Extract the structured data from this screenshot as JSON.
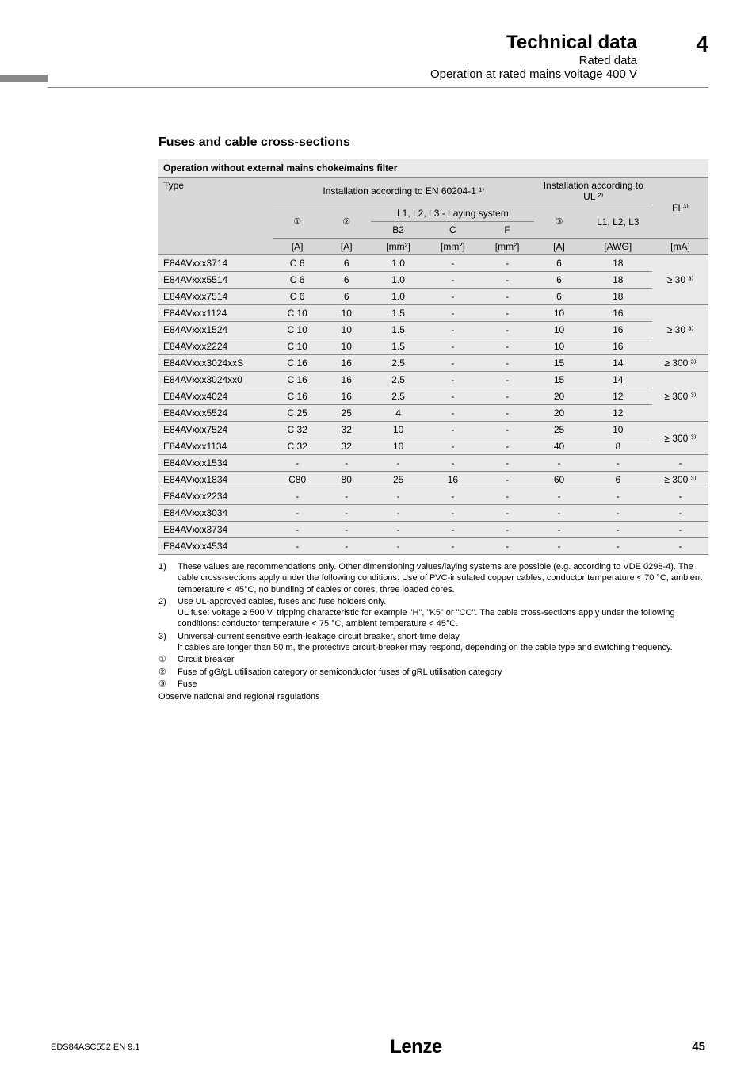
{
  "header": {
    "chapter_num": "4",
    "title": "Technical data",
    "sub1": "Rated data",
    "sub2": "Operation at rated mains voltage 400 V"
  },
  "section_title": "Fuses and cable cross-sections",
  "table": {
    "caption": "Operation without external mains choke/mains filter",
    "col_type": "Type",
    "group_en": "Installation according to EN 60204-1 ¹⁾",
    "group_ul": "Installation according to UL ²⁾",
    "group_fi": "FI ³⁾",
    "sub_laying": "L1, L2, L3 - Laying system",
    "sub_l123": "L1, L2, L3",
    "h_b2": "B2",
    "h_c": "C",
    "h_f": "F",
    "u_a1": "[A]",
    "u_a2": "[A]",
    "u_mm1": "[mm²]",
    "u_mm2": "[mm²]",
    "u_mm3": "[mm²]",
    "u_a3": "[A]",
    "u_awg": "[AWG]",
    "u_ma": "[mA]",
    "icon1": "①",
    "icon2": "②",
    "icon3": "③",
    "rows": [
      {
        "type": "E84AVxxx3714",
        "c1": "C 6",
        "c2": "6",
        "c3": "1.0",
        "c4": "-",
        "c5": "-",
        "c6": "6",
        "c7": "18"
      },
      {
        "type": "E84AVxxx5514",
        "c1": "C 6",
        "c2": "6",
        "c3": "1.0",
        "c4": "-",
        "c5": "-",
        "c6": "6",
        "c7": "18"
      },
      {
        "type": "E84AVxxx7514",
        "c1": "C 6",
        "c2": "6",
        "c3": "1.0",
        "c4": "-",
        "c5": "-",
        "c6": "6",
        "c7": "18"
      },
      {
        "type": "E84AVxxx1124",
        "c1": "C 10",
        "c2": "10",
        "c3": "1.5",
        "c4": "-",
        "c5": "-",
        "c6": "10",
        "c7": "16"
      },
      {
        "type": "E84AVxxx1524",
        "c1": "C 10",
        "c2": "10",
        "c3": "1.5",
        "c4": "-",
        "c5": "-",
        "c6": "10",
        "c7": "16"
      },
      {
        "type": "E84AVxxx2224",
        "c1": "C 10",
        "c2": "10",
        "c3": "1.5",
        "c4": "-",
        "c5": "-",
        "c6": "10",
        "c7": "16"
      },
      {
        "type": "E84AVxxx3024xxS",
        "c1": "C 16",
        "c2": "16",
        "c3": "2.5",
        "c4": "-",
        "c5": "-",
        "c6": "15",
        "c7": "14"
      },
      {
        "type": "E84AVxxx3024xx0",
        "c1": "C 16",
        "c2": "16",
        "c3": "2.5",
        "c4": "-",
        "c5": "-",
        "c6": "15",
        "c7": "14"
      },
      {
        "type": "E84AVxxx4024",
        "c1": "C 16",
        "c2": "16",
        "c3": "2.5",
        "c4": "-",
        "c5": "-",
        "c6": "20",
        "c7": "12"
      },
      {
        "type": "E84AVxxx5524",
        "c1": "C 25",
        "c2": "25",
        "c3": "4",
        "c4": "-",
        "c5": "-",
        "c6": "20",
        "c7": "12"
      },
      {
        "type": "E84AVxxx7524",
        "c1": "C 32",
        "c2": "32",
        "c3": "10",
        "c4": "-",
        "c5": "-",
        "c6": "25",
        "c7": "10"
      },
      {
        "type": "E84AVxxx1134",
        "c1": "C 32",
        "c2": "32",
        "c3": "10",
        "c4": "-",
        "c5": "-",
        "c6": "40",
        "c7": "8"
      },
      {
        "type": "E84AVxxx1534",
        "c1": "-",
        "c2": "-",
        "c3": "-",
        "c4": "-",
        "c5": "-",
        "c6": "-",
        "c7": "-",
        "fi": "-"
      },
      {
        "type": "E84AVxxx1834",
        "c1": "C80",
        "c2": "80",
        "c3": "25",
        "c4": "16",
        "c5": "-",
        "c6": "60",
        "c7": "6"
      },
      {
        "type": "E84AVxxx2234",
        "c1": "-",
        "c2": "-",
        "c3": "-",
        "c4": "-",
        "c5": "-",
        "c6": "-",
        "c7": "-",
        "fi": "-"
      },
      {
        "type": "E84AVxxx3034",
        "c1": "-",
        "c2": "-",
        "c3": "-",
        "c4": "-",
        "c5": "-",
        "c6": "-",
        "c7": "-",
        "fi": "-"
      },
      {
        "type": "E84AVxxx3734",
        "c1": "-",
        "c2": "-",
        "c3": "-",
        "c4": "-",
        "c5": "-",
        "c6": "-",
        "c7": "-",
        "fi": "-"
      },
      {
        "type": "E84AVxxx4534",
        "c1": "-",
        "c2": "-",
        "c3": "-",
        "c4": "-",
        "c5": "-",
        "c6": "-",
        "c7": "-",
        "fi": "-"
      }
    ],
    "fi_groups": [
      {
        "span": 3,
        "text": "≥ 30 ³⁾"
      },
      {
        "span": 3,
        "text": "≥ 30 ³⁾"
      },
      {
        "span": 1,
        "text": "≥ 300 ³⁾"
      },
      {
        "span": 3,
        "text": "≥ 300 ³⁾"
      },
      {
        "span": 2,
        "text": "≥ 300 ³⁾"
      },
      {
        "span": 1,
        "text": "-"
      },
      {
        "span": 1,
        "text": "≥ 300 ³⁾"
      },
      {
        "span": 1,
        "text": "-"
      },
      {
        "span": 1,
        "text": "-"
      },
      {
        "span": 1,
        "text": "-"
      },
      {
        "span": 1,
        "text": "-"
      }
    ]
  },
  "footnotes": {
    "n1": "These values are recommendations only. Other dimensioning values/laying systems are possible (e.g. according to VDE 0298-4). The cable cross-sections apply under the following conditions: Use of PVC-insulated copper cables, conductor temperature < 70 °C, ambient temperature < 45°C, no bundling of cables or cores, three loaded cores.",
    "n2": "Use UL-approved cables, fuses and fuse holders only.\nUL fuse: voltage ≥ 500 V, tripping characteristic for example \"H\", \"K5\" or \"CC\". The cable cross-sections apply under the following conditions: conductor temperature < 75 °C, ambient temperature < 45°C.",
    "n3": "Universal-current sensitive earth-leakage circuit breaker, short-time delay\nIf cables are longer than 50 m, the protective circuit-breaker may respond, depending on the cable type and switching frequency.",
    "c1": "Circuit breaker",
    "c2": "Fuse of gG/gL utilisation category or semiconductor fuses of gRL utilisation category",
    "c3": "Fuse",
    "obs": "Observe national and regional regulations"
  },
  "footer": {
    "doc_id": "EDS84ASC552  EN  9.1",
    "brand": "Lenze",
    "page": "45"
  }
}
